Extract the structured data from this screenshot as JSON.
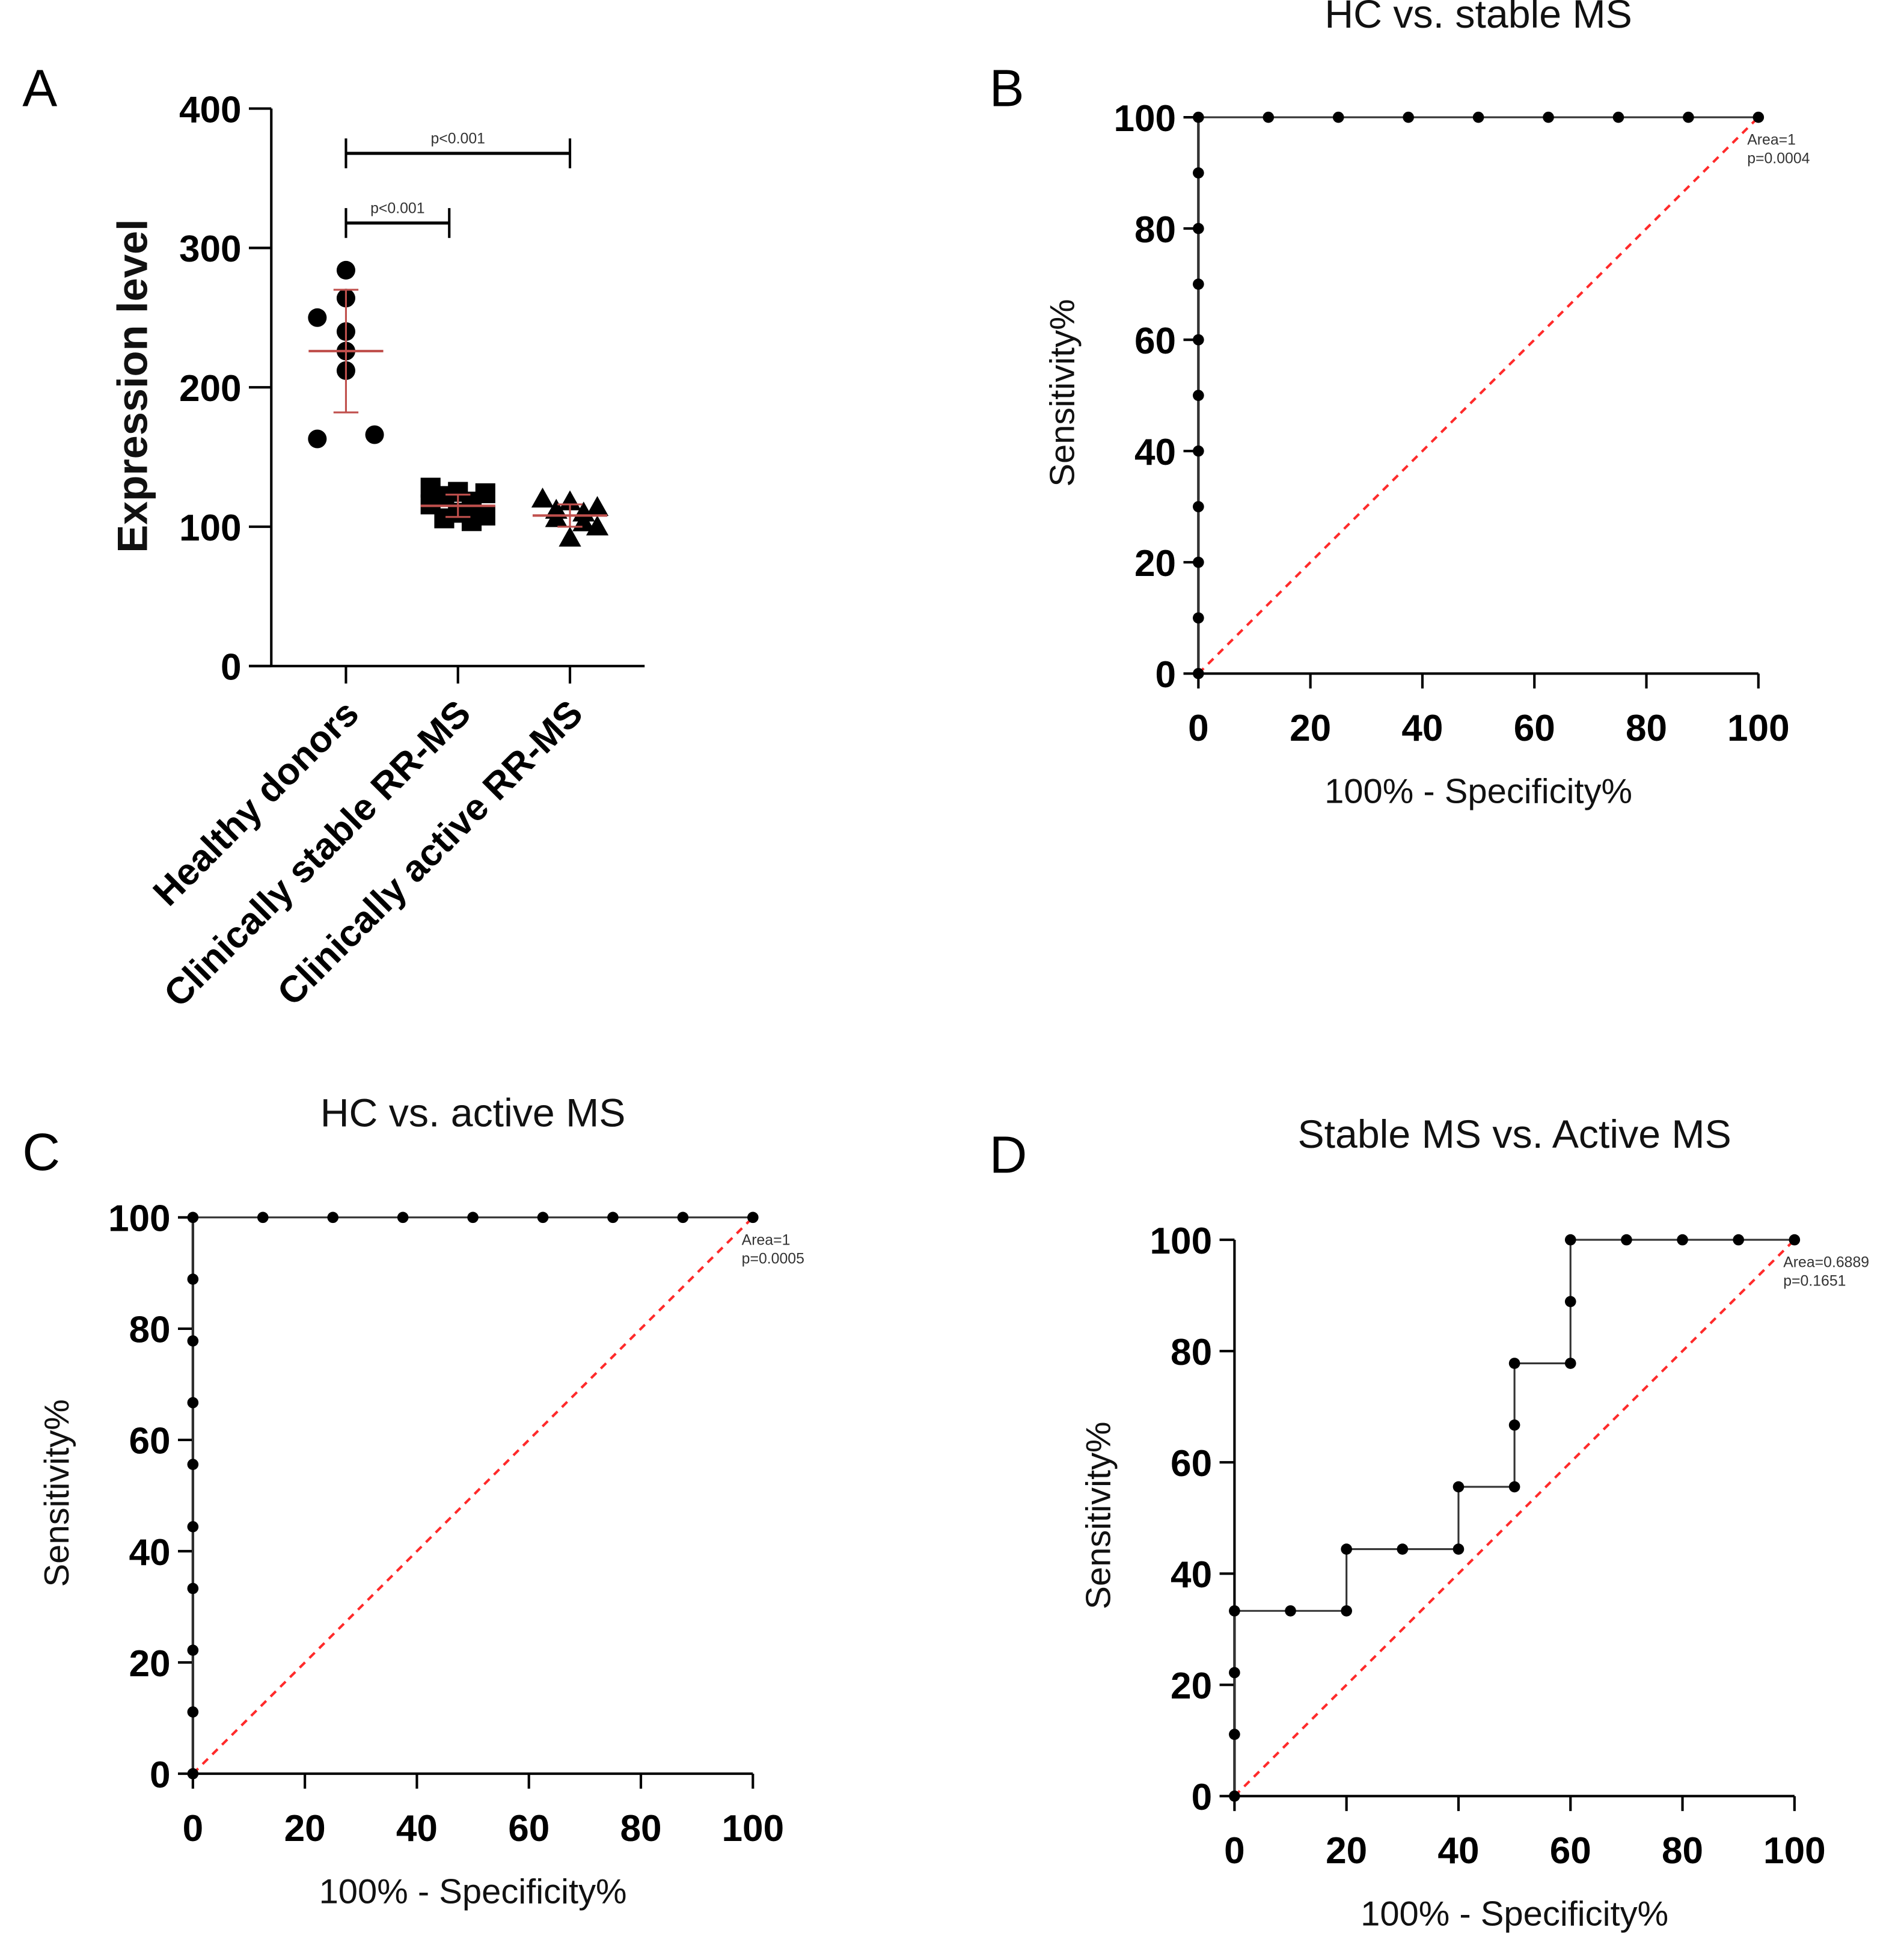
{
  "chart_data": [
    {
      "panel": "A",
      "type": "scatter",
      "ylabel": "Expression level",
      "ylim": [
        0,
        400
      ],
      "yticks": [
        0,
        100,
        200,
        300,
        400
      ],
      "categories": [
        "Healthy donors",
        "Clinically stable RR-MS",
        "Clinically active RR-MS"
      ],
      "markers": [
        "circle",
        "square",
        "triangle"
      ],
      "values": [
        [
          284,
          264,
          250,
          240,
          226,
          212,
          163,
          166
        ],
        [
          128,
          125,
          124,
          122,
          118,
          116,
          110,
          108,
          106,
          104
        ],
        [
          120,
          118,
          114,
          112,
          110,
          106,
          103,
          100,
          92
        ]
      ],
      "mean_sd": [
        {
          "mean": 226,
          "sd": 44
        },
        {
          "mean": 115,
          "sd": 8
        },
        {
          "mean": 108,
          "sd": 8
        }
      ],
      "annotations": [
        {
          "text": "p<0.001",
          "from": 0,
          "to": 2,
          "y": 375
        },
        {
          "text": "p<0.001",
          "from": 0,
          "to": 1,
          "y": 325
        }
      ],
      "mean_color": "#c0504d"
    },
    {
      "panel": "B",
      "type": "line",
      "title": "HC vs. stable MS",
      "xlabel": "100% - Specificity%",
      "ylabel": "Sensitivity%",
      "xlim": [
        0,
        100
      ],
      "ylim": [
        0,
        100
      ],
      "ticks": [
        0,
        20,
        40,
        60,
        80,
        100
      ],
      "x": [
        0,
        0,
        0,
        0,
        0,
        0,
        0,
        0,
        0,
        0,
        0,
        12.5,
        25,
        37.5,
        50,
        62.5,
        75,
        87.5,
        100
      ],
      "y": [
        0,
        10,
        20,
        30,
        40,
        50,
        60,
        70,
        80,
        90,
        100,
        100,
        100,
        100,
        100,
        100,
        100,
        100,
        100
      ],
      "area_text": "Area=1",
      "p_text": "p=0.0004"
    },
    {
      "panel": "C",
      "type": "line",
      "title": "HC vs. active MS",
      "xlabel": "100% - Specificity%",
      "ylabel": "Sensitivity%",
      "xlim": [
        0,
        100
      ],
      "ylim": [
        0,
        100
      ],
      "ticks": [
        0,
        20,
        40,
        60,
        80,
        100
      ],
      "x": [
        0,
        0,
        0,
        0,
        0,
        0,
        0,
        0,
        0,
        0,
        12.5,
        25,
        37.5,
        50,
        62.5,
        75,
        87.5,
        100
      ],
      "y": [
        0,
        11.1,
        22.2,
        33.3,
        44.4,
        55.6,
        66.7,
        77.8,
        88.9,
        100,
        100,
        100,
        100,
        100,
        100,
        100,
        100,
        100
      ],
      "area_text": "Area=1",
      "p_text": "p=0.0005"
    },
    {
      "panel": "D",
      "type": "line",
      "title": "Stable MS vs. Active MS",
      "xlabel": "100% - Specificity%",
      "ylabel": "Sensitivity%",
      "xlim": [
        0,
        100
      ],
      "ylim": [
        0,
        100
      ],
      "ticks": [
        0,
        20,
        40,
        60,
        80,
        100
      ],
      "x": [
        0,
        0,
        0,
        0,
        10,
        20,
        20,
        30,
        40,
        40,
        50,
        50,
        50,
        60,
        60,
        60,
        70,
        80,
        90,
        100
      ],
      "y": [
        0,
        11.1,
        22.2,
        33.3,
        33.3,
        33.3,
        44.4,
        44.4,
        44.4,
        55.6,
        55.6,
        66.7,
        77.8,
        77.8,
        88.9,
        100,
        100,
        100,
        100,
        100
      ],
      "area_text": "Area=0.6889",
      "p_text": "p=0.1651"
    }
  ]
}
